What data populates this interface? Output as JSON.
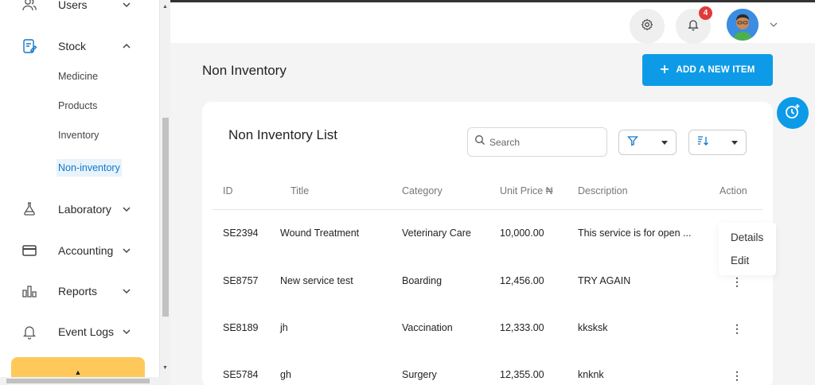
{
  "sidebar": {
    "users_label": "Users",
    "stock_label": "Stock",
    "stock_sub": [
      "Medicine",
      "Products",
      "Inventory",
      "Non-inventory"
    ],
    "laboratory_label": "Laboratory",
    "accounting_label": "Accounting",
    "reports_label": "Reports",
    "event_logs_label": "Event Logs",
    "accent_color": "#1477c7"
  },
  "header": {
    "notification_count": "4"
  },
  "page": {
    "title": "Non Inventory",
    "add_button_label": "ADD A NEW ITEM"
  },
  "card": {
    "title": "Non Inventory List",
    "search_placeholder": "Search",
    "columns": [
      "ID",
      "Title",
      "Category",
      "Unit Price ₦",
      "Description",
      "Action"
    ],
    "rows": [
      {
        "id": "SE2394",
        "title": "Wound Treatment",
        "category": "Veterinary Care",
        "price": "10,000.00",
        "description": "This service is for open ..."
      },
      {
        "id": "SE8757",
        "title": "New service test",
        "category": "Boarding",
        "price": "12,456.00",
        "description": "TRY AGAIN"
      },
      {
        "id": "SE8189",
        "title": "jh",
        "category": "Vaccination",
        "price": "12,333.00",
        "description": "kksksk"
      },
      {
        "id": "SE5784",
        "title": "gh",
        "category": "Surgery",
        "price": "12,355.00",
        "description": "knknk"
      }
    ],
    "action_menu": [
      "Details",
      "Edit"
    ]
  },
  "colors": {
    "primary": "#0d9be8",
    "badge": "#e03a3a",
    "bottom_button": "#ffc85a"
  }
}
